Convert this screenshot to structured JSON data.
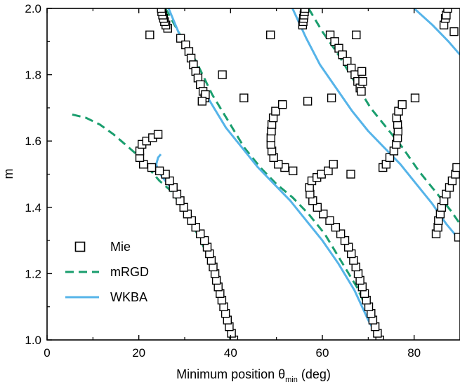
{
  "chart_data": {
    "type": "scatter",
    "xlabel": {
      "text": "Minimum position θ",
      "sub": "min",
      "unit": " (deg)"
    },
    "ylabel": "m",
    "xlim": [
      0,
      90
    ],
    "ylim": [
      1.0,
      2.0
    ],
    "x_ticks": [
      0,
      20,
      40,
      60,
      80
    ],
    "x_tick_labels": [
      "0",
      "20",
      "40",
      "60",
      "80"
    ],
    "y_ticks": [
      1.0,
      1.2,
      1.4,
      1.6,
      1.8,
      2.0
    ],
    "y_tick_labels": [
      "1.0",
      "1.2",
      "1.4",
      "1.6",
      "1.8",
      "2.0"
    ],
    "grid": false,
    "legend_position": "bottom-left",
    "series": [
      {
        "name": "Mie",
        "kind": "markers",
        "marker": "open-square",
        "color": "#000000",
        "curves": [
          [
            [
              40.7,
              1.0
            ],
            [
              40.2,
              1.02
            ],
            [
              39.7,
              1.04
            ],
            [
              39.3,
              1.06
            ],
            [
              38.9,
              1.08
            ],
            [
              38.5,
              1.1
            ],
            [
              38.1,
              1.12
            ],
            [
              37.7,
              1.14
            ],
            [
              37.3,
              1.16
            ],
            [
              36.9,
              1.18
            ],
            [
              36.6,
              1.2
            ],
            [
              36.2,
              1.22
            ],
            [
              35.8,
              1.24
            ],
            [
              35.4,
              1.26
            ],
            [
              34.9,
              1.28
            ],
            [
              34.3,
              1.3
            ],
            [
              33.4,
              1.32
            ],
            [
              32.4,
              1.34
            ],
            [
              31.5,
              1.36
            ],
            [
              30.6,
              1.38
            ],
            [
              29.8,
              1.4
            ],
            [
              29.0,
              1.42
            ],
            [
              28.3,
              1.44
            ],
            [
              27.5,
              1.46
            ],
            [
              26.7,
              1.48
            ],
            [
              25.8,
              1.5
            ],
            [
              24.5,
              1.51
            ],
            [
              22.8,
              1.52
            ],
            [
              21.0,
              1.53
            ],
            [
              20.2,
              1.55
            ],
            [
              20.2,
              1.57
            ],
            [
              20.7,
              1.59
            ],
            [
              21.7,
              1.6
            ],
            [
              23.0,
              1.61
            ],
            [
              24.2,
              1.62
            ]
          ],
          [
            [
              72.5,
              1.0
            ],
            [
              72.0,
              1.02
            ],
            [
              71.5,
              1.04
            ],
            [
              71.0,
              1.06
            ],
            [
              70.6,
              1.08
            ],
            [
              70.1,
              1.1
            ],
            [
              69.6,
              1.12
            ],
            [
              69.2,
              1.14
            ],
            [
              68.7,
              1.16
            ],
            [
              68.2,
              1.18
            ],
            [
              67.8,
              1.2
            ],
            [
              67.3,
              1.22
            ],
            [
              66.8,
              1.24
            ],
            [
              66.3,
              1.26
            ],
            [
              65.7,
              1.28
            ],
            [
              64.9,
              1.3
            ],
            [
              64.0,
              1.32
            ],
            [
              62.9,
              1.34
            ],
            [
              61.6,
              1.36
            ],
            [
              60.2,
              1.38
            ],
            [
              58.9,
              1.4
            ],
            [
              57.9,
              1.42
            ],
            [
              57.3,
              1.44
            ],
            [
              57.2,
              1.46
            ],
            [
              57.7,
              1.48
            ],
            [
              58.8,
              1.49
            ],
            [
              59.8,
              1.5
            ],
            [
              61.3,
              1.51
            ],
            [
              62.4,
              1.53
            ]
          ],
          [
            [
              51.8,
              1.52
            ],
            [
              50.4,
              1.53
            ],
            [
              49.4,
              1.55
            ],
            [
              49.0,
              1.57
            ],
            [
              48.8,
              1.59
            ],
            [
              48.8,
              1.61
            ],
            [
              48.9,
              1.63
            ],
            [
              49.0,
              1.65
            ],
            [
              49.3,
              1.67
            ],
            [
              49.8,
              1.69
            ],
            [
              51.3,
              1.71
            ]
          ],
          [
            [
              73.2,
              1.52
            ],
            [
              73.9,
              1.53
            ],
            [
              74.7,
              1.55
            ],
            [
              75.6,
              1.57
            ],
            [
              76.1,
              1.59
            ],
            [
              76.4,
              1.61
            ],
            [
              76.5,
              1.63
            ],
            [
              76.4,
              1.65
            ],
            [
              76.2,
              1.67
            ],
            [
              76.6,
              1.69
            ],
            [
              77.4,
              1.71
            ],
            [
              80.2,
              1.73
            ]
          ],
          [
            [
              29.1,
              1.91
            ],
            [
              30.2,
              1.89
            ],
            [
              30.9,
              1.87
            ],
            [
              31.4,
              1.85
            ],
            [
              31.9,
              1.83
            ],
            [
              32.4,
              1.81
            ],
            [
              32.9,
              1.79
            ],
            [
              33.4,
              1.77
            ],
            [
              34.0,
              1.75
            ],
            [
              34.4,
              1.73
            ],
            [
              34.5,
              1.74
            ]
          ],
          [
            [
              26.3,
              1.94
            ],
            [
              25.9,
              1.95
            ],
            [
              25.6,
              1.96
            ],
            [
              25.4,
              1.97
            ],
            [
              25.2,
              1.98
            ],
            [
              25.0,
              1.99
            ],
            [
              24.9,
              2.0
            ]
          ],
          [
            [
              55.7,
              1.95
            ],
            [
              55.8,
              1.96
            ],
            [
              55.9,
              1.97
            ],
            [
              56.0,
              1.98
            ],
            [
              56.1,
              1.99
            ],
            [
              56.2,
              2.0
            ]
          ],
          [
            [
              61.7,
              1.92
            ],
            [
              62.7,
              1.9
            ],
            [
              63.6,
              1.88
            ],
            [
              64.4,
              1.86
            ],
            [
              65.4,
              1.84
            ],
            [
              66.3,
              1.82
            ],
            [
              67.1,
              1.8
            ],
            [
              67.7,
              1.78
            ],
            [
              68.2,
              1.76
            ],
            [
              68.5,
              1.75
            ],
            [
              68.8,
              1.78
            ],
            [
              68.6,
              1.81
            ]
          ],
          [
            [
              84.8,
              1.32
            ],
            [
              85.2,
              1.34
            ],
            [
              85.3,
              1.36
            ],
            [
              85.7,
              1.38
            ],
            [
              86.0,
              1.4
            ],
            [
              86.5,
              1.42
            ],
            [
              87.0,
              1.44
            ],
            [
              87.7,
              1.46
            ],
            [
              88.3,
              1.48
            ],
            [
              89.0,
              1.5
            ],
            [
              89.3,
              1.52
            ]
          ],
          [
            [
              86.5,
              1.95
            ],
            [
              86.8,
              1.97
            ],
            [
              87.0,
              1.98
            ],
            [
              87.3,
              2.0
            ]
          ],
          [
            [
              22.4,
              1.92
            ],
            [
              33.8,
              1.72
            ],
            [
              38.2,
              1.8
            ],
            [
              42.9,
              1.73
            ],
            [
              48.7,
              1.92
            ],
            [
              53.6,
              1.51
            ],
            [
              56.8,
              1.72
            ],
            [
              62.0,
              1.73
            ],
            [
              66.2,
              1.5
            ],
            [
              67.4,
              1.92
            ],
            [
              88.7,
              1.93
            ],
            [
              89.7,
              1.31
            ]
          ]
        ]
      },
      {
        "name": "mRGD",
        "kind": "dashed-line",
        "color": "#1a9e6e",
        "curves": [
          [
            [
              5.5,
              1.68
            ],
            [
              8.5,
              1.67
            ],
            [
              11.5,
              1.65
            ],
            [
              14.5,
              1.62
            ],
            [
              17.0,
              1.59
            ],
            [
              19.5,
              1.56
            ],
            [
              22.0,
              1.52
            ],
            [
              24.5,
              1.48
            ],
            [
              27.0,
              1.45
            ],
            [
              29.5,
              1.4
            ],
            [
              32.0,
              1.34
            ],
            [
              34.5,
              1.27
            ],
            [
              36.5,
              1.2
            ],
            [
              38.0,
              1.13
            ],
            [
              39.2,
              1.06
            ],
            [
              40.0,
              1.0
            ]
          ],
          [
            [
              25.8,
              2.0
            ],
            [
              29.0,
              1.92
            ],
            [
              32.5,
              1.84
            ],
            [
              36.0,
              1.74
            ],
            [
              39.5,
              1.66
            ],
            [
              43.0,
              1.58
            ],
            [
              46.5,
              1.52
            ],
            [
              50.0,
              1.47
            ],
            [
              53.5,
              1.43
            ],
            [
              57.0,
              1.38
            ],
            [
              60.5,
              1.32
            ],
            [
              64.0,
              1.24
            ],
            [
              67.5,
              1.16
            ],
            [
              70.5,
              1.07
            ],
            [
              72.5,
              1.0
            ]
          ],
          [
            [
              57.0,
              2.0
            ],
            [
              60.0,
              1.93
            ],
            [
              63.5,
              1.86
            ],
            [
              67.0,
              1.78
            ],
            [
              70.5,
              1.7
            ],
            [
              74.0,
              1.64
            ],
            [
              77.5,
              1.58
            ],
            [
              81.0,
              1.51
            ],
            [
              84.5,
              1.45
            ],
            [
              88.0,
              1.39
            ],
            [
              90.0,
              1.35
            ]
          ]
        ]
      },
      {
        "name": "WKBA",
        "kind": "solid-line",
        "color": "#56b4e9",
        "curves": [
          [
            [
              24.8,
              1.56
            ],
            [
              24.2,
              1.55
            ],
            [
              23.8,
              1.53
            ],
            [
              24.2,
              1.51
            ],
            [
              25.2,
              1.49
            ],
            [
              27.5,
              1.45
            ],
            [
              30.5,
              1.39
            ],
            [
              33.0,
              1.33
            ],
            [
              35.0,
              1.26
            ],
            [
              36.8,
              1.19
            ],
            [
              38.2,
              1.12
            ],
            [
              39.3,
              1.06
            ],
            [
              40.1,
              1.0
            ]
          ],
          [
            [
              26.5,
              2.0
            ],
            [
              29.5,
              1.9
            ],
            [
              32.5,
              1.8
            ],
            [
              35.5,
              1.72
            ],
            [
              39.0,
              1.64
            ],
            [
              42.5,
              1.58
            ],
            [
              46.0,
              1.52
            ],
            [
              49.5,
              1.47
            ],
            [
              53.0,
              1.42
            ],
            [
              56.5,
              1.36
            ],
            [
              60.0,
              1.3
            ],
            [
              63.5,
              1.23
            ],
            [
              67.0,
              1.15
            ],
            [
              70.0,
              1.06
            ],
            [
              72.4,
              1.0
            ]
          ],
          [
            [
              53.5,
              2.0
            ],
            [
              56.5,
              1.91
            ],
            [
              59.5,
              1.83
            ],
            [
              63.0,
              1.76
            ],
            [
              66.5,
              1.69
            ],
            [
              70.0,
              1.63
            ],
            [
              73.5,
              1.58
            ],
            [
              77.0,
              1.53
            ],
            [
              80.5,
              1.47
            ],
            [
              84.0,
              1.41
            ],
            [
              87.0,
              1.35
            ],
            [
              90.0,
              1.3
            ]
          ],
          [
            [
              80.0,
              2.0
            ],
            [
              84.0,
              1.95
            ],
            [
              87.5,
              1.9
            ],
            [
              90.0,
              1.86
            ]
          ]
        ]
      }
    ]
  }
}
